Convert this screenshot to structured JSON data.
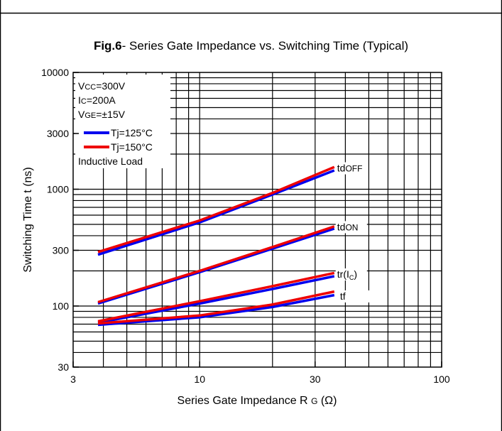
{
  "chart_data": {
    "type": "line",
    "title_prefix": "Fig.6",
    "title_rest": "- Series Gate Impedance vs. Switching Time (Typical)",
    "xlabel": "Series Gate Impedance R",
    "xlabel_sub": "G",
    "xlabel_unit": "(Ω)",
    "ylabel": "Switching Time t  (ns)",
    "x_scale": "log",
    "y_scale": "log",
    "xlim": [
      3,
      100
    ],
    "ylim": [
      30,
      10000
    ],
    "x_ticks": [
      3,
      10,
      30,
      100
    ],
    "x_tick_labels": [
      "3",
      "10",
      "30",
      "100"
    ],
    "y_ticks": [
      30,
      100,
      300,
      1000,
      3000,
      10000
    ],
    "y_tick_labels": [
      "30",
      "100",
      "300",
      "1000",
      "3000",
      "10000"
    ],
    "grid": true,
    "legend_position": "top-left",
    "conditions": [
      {
        "main": "V",
        "sub": "CC",
        "rest": "=300V"
      },
      {
        "main": "I",
        "sub": "C",
        "rest": "=200A"
      },
      {
        "main": "V",
        "sub": "GE",
        "rest": "=±15V"
      }
    ],
    "load_note": "Inductive Load",
    "legend": [
      {
        "label": "Tj=125°C",
        "color": "#0000ee"
      },
      {
        "label": "Tj=150°C",
        "color": "#ee0000"
      }
    ],
    "curves": [
      {
        "name": "tdOFF",
        "label_main": "td",
        "label_sub": "OFF",
        "label_x": 36,
        "label_y": 1500,
        "t125": {
          "x": [
            3.8,
            10,
            20,
            36
          ],
          "y": [
            275,
            520,
            900,
            1450
          ]
        },
        "t150": {
          "x": [
            3.8,
            10,
            20,
            36
          ],
          "y": [
            290,
            540,
            930,
            1550
          ]
        }
      },
      {
        "name": "tdON",
        "label_main": "td",
        "label_sub": "ON",
        "label_x": 36,
        "label_y": 470,
        "t125": {
          "x": [
            3.8,
            10,
            20,
            36
          ],
          "y": [
            105,
            195,
            310,
            460
          ]
        },
        "t150": {
          "x": [
            3.8,
            10,
            20,
            36
          ],
          "y": [
            108,
            200,
            320,
            480
          ]
        }
      },
      {
        "name": "tr(IC)",
        "label_main": "tr(I",
        "label_sub": "C",
        "label_tail": ")",
        "label_x": 36,
        "label_y": 185,
        "t125": {
          "x": [
            3.8,
            10,
            20,
            36
          ],
          "y": [
            72,
            105,
            140,
            180
          ]
        },
        "t150": {
          "x": [
            3.8,
            10,
            20,
            36
          ],
          "y": [
            74,
            110,
            148,
            192
          ]
        }
      },
      {
        "name": "tf",
        "label_main": "tf",
        "label_x": 37,
        "label_y": 120,
        "t125": {
          "x": [
            3.8,
            10,
            20,
            36
          ],
          "y": [
            69,
            80,
            98,
            124
          ]
        },
        "t150": {
          "x": [
            3.8,
            10,
            20,
            36
          ],
          "y": [
            71,
            83,
            103,
            133
          ]
        }
      }
    ]
  }
}
